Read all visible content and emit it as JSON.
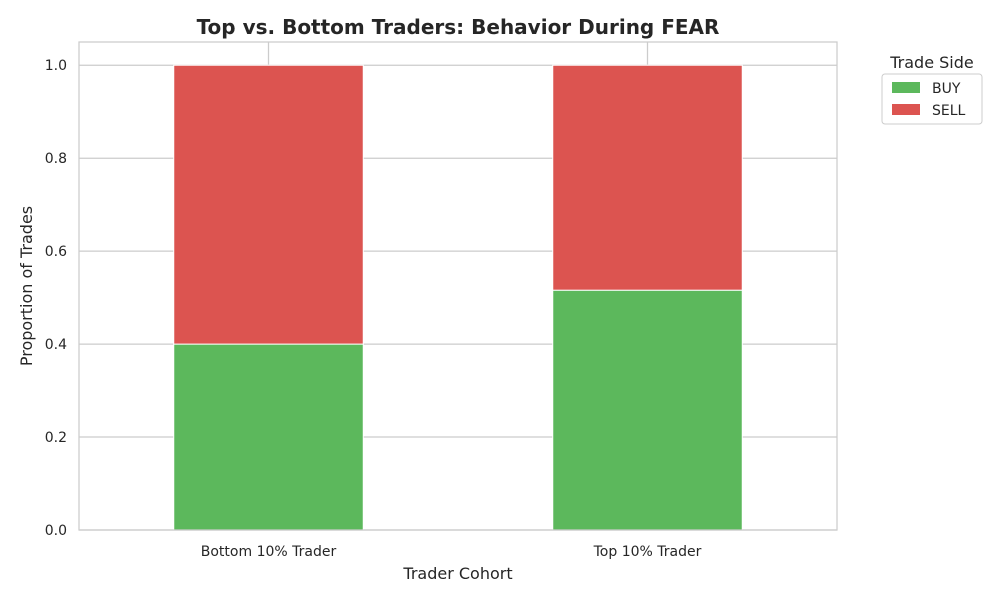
{
  "chart_data": {
    "type": "bar",
    "stacked": true,
    "title": "Top vs. Bottom Traders: Behavior During FEAR",
    "xlabel": "Trader Cohort",
    "ylabel": "Proportion of Trades",
    "categories": [
      "Bottom 10% Trader",
      "Top 10% Trader"
    ],
    "series": [
      {
        "name": "BUY",
        "values": [
          0.4,
          0.516
        ],
        "color": "#5cb85c"
      },
      {
        "name": "SELL",
        "values": [
          0.6,
          0.484
        ],
        "color": "#dc5450"
      }
    ],
    "ylim": [
      0,
      1.05
    ],
    "yticks": [
      "0.0",
      "0.2",
      "0.4",
      "0.6",
      "0.8",
      "1.0"
    ],
    "grid": true,
    "legend": {
      "title": "Trade Side",
      "placement": "outside-top-right"
    }
  }
}
